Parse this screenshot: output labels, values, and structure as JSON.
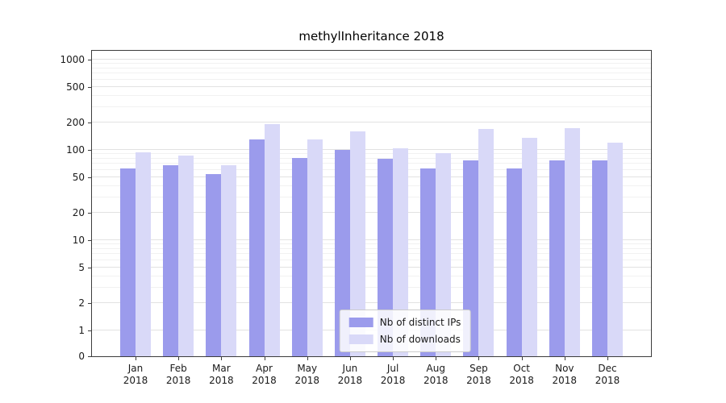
{
  "chart_data": {
    "type": "bar",
    "title": "methylInheritance 2018",
    "year_label": "2018",
    "categories": [
      "Jan",
      "Feb",
      "Mar",
      "Apr",
      "May",
      "Jun",
      "Jul",
      "Aug",
      "Sep",
      "Oct",
      "Nov",
      "Dec"
    ],
    "series": [
      {
        "name": "Nb of distinct IPs",
        "color": "#9b9bec",
        "values": [
          62,
          68,
          54,
          130,
          82,
          100,
          80,
          62,
          77,
          62,
          76,
          76
        ]
      },
      {
        "name": "Nb of downloads",
        "color": "#d9d9f8",
        "values": [
          95,
          87,
          68,
          195,
          130,
          160,
          105,
          93,
          170,
          135,
          175,
          120
        ]
      }
    ],
    "y_ticks": [
      0,
      1,
      2,
      5,
      10,
      20,
      50,
      100,
      200,
      500,
      1000
    ],
    "ylim": [
      0,
      1000
    ],
    "y_scale": "log",
    "xlabel": "",
    "ylabel": "",
    "grid": "horizontal",
    "legend_position": "lower center"
  }
}
